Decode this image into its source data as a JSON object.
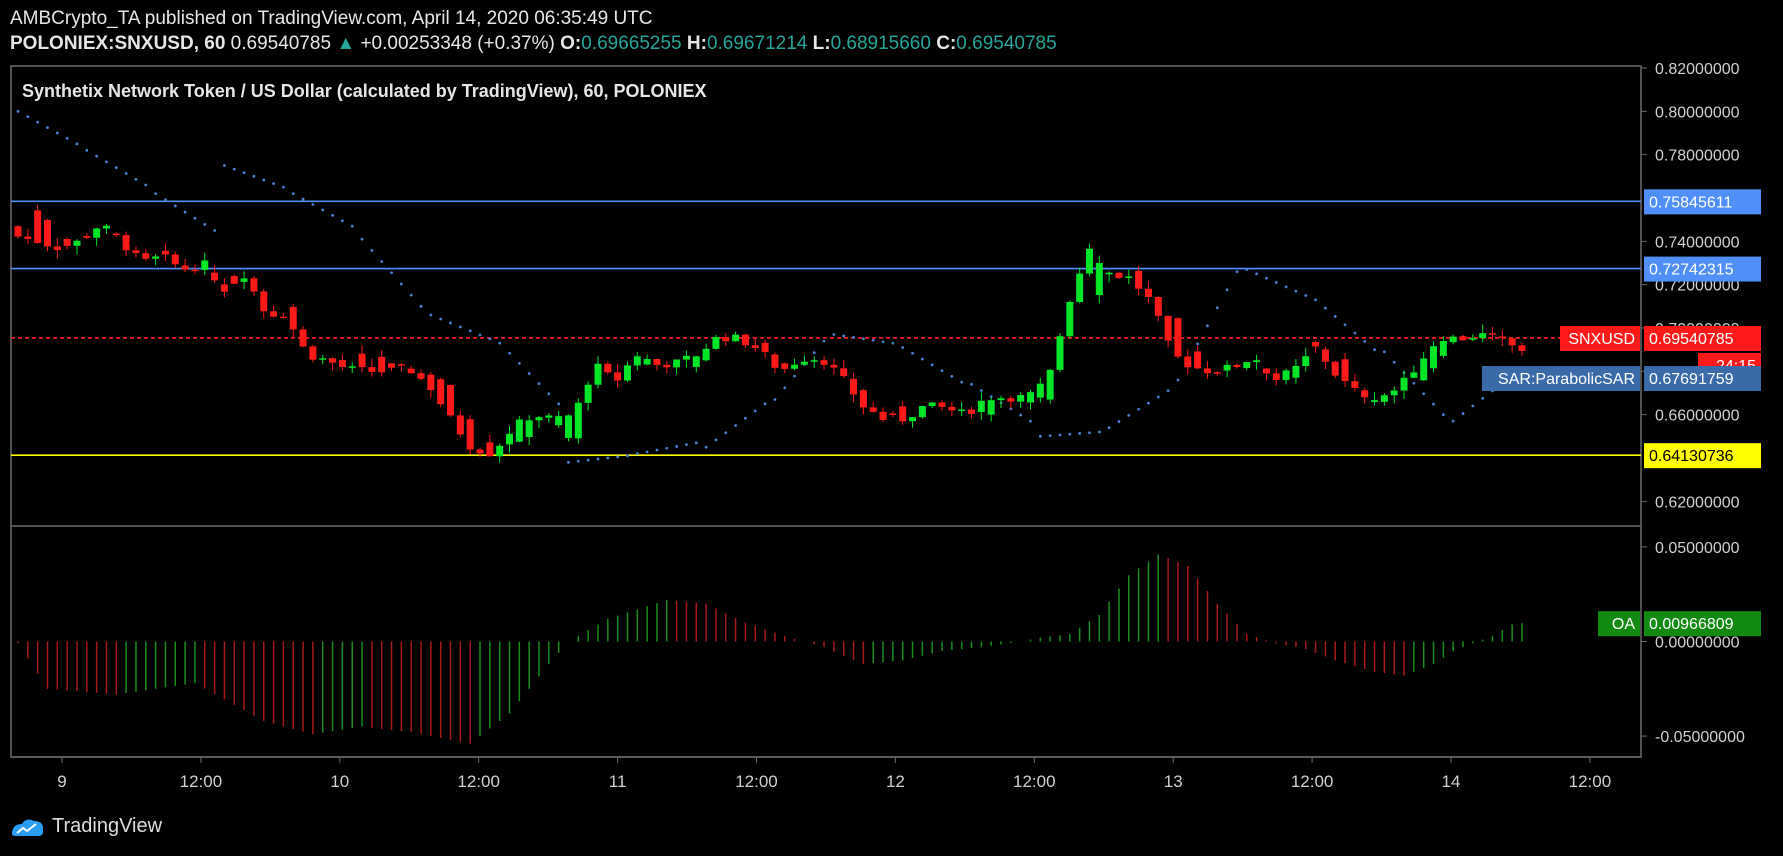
{
  "header": {
    "line1": "AMBCrypto_TA published on TradingView.com, April 14, 2020 06:35:49 UTC",
    "symbol": "POLONIEX:SNXUSD, 60",
    "last": "0.69540785",
    "change_arrow": "▲",
    "change": "+0.00253348 (+0.37%)",
    "o_label": "O:",
    "o_value": "0.69665255",
    "h_label": "H:",
    "h_value": "0.69671214",
    "l_label": "L:",
    "l_value": "0.68915660",
    "c_label": "C:",
    "c_value": "0.69540785"
  },
  "footer": {
    "brand": "TradingView",
    "logo_icon": "tradingview-logo-icon"
  },
  "colors": {
    "up": "#00e626",
    "down": "#ff1a1a",
    "sar": "#4a7fcf",
    "blue_line": "#4f8ff7",
    "yellow_line": "#ffff00",
    "osc_up": "#1a8c1a",
    "osc_down": "#a61a1a"
  },
  "chart_data": [
    {
      "type": "candlestick",
      "title": "Synthetix Network Token / US Dollar (calculated by TradingView), 60, POLONIEX",
      "ylim": [
        0.61,
        0.82
      ],
      "y_ticks": [
        "0.82000000",
        "0.80000000",
        "0.78000000",
        "0.74000000",
        "0.72000000",
        "0.70000000",
        "0.68000000",
        "0.66000000",
        "0.62000000"
      ],
      "y_tick_values": [
        0.82,
        0.8,
        0.78,
        0.74,
        0.72,
        0.7,
        0.68,
        0.66,
        0.62
      ],
      "x_ticks": [
        "9",
        "12:00",
        "10",
        "12:00",
        "11",
        "12:00",
        "12",
        "12:00",
        "13",
        "12:00",
        "14",
        "12:00"
      ],
      "anchors": [
        [
          0.747,
          0.742
        ],
        [
          0.755,
          0.74
        ],
        [
          0.743,
          0.737
        ],
        [
          0.742,
          0.74
        ],
        [
          0.744,
          0.748
        ],
        [
          0.744,
          0.74
        ],
        [
          0.735,
          0.73
        ],
        [
          0.735,
          0.733
        ],
        [
          0.73,
          0.727
        ],
        [
          0.73,
          0.73
        ],
        [
          0.722,
          0.718
        ],
        [
          0.723,
          0.725
        ],
        [
          0.718,
          0.707
        ],
        [
          0.708,
          0.706
        ],
        [
          0.71,
          0.688
        ],
        [
          0.698,
          0.685
        ],
        [
          0.68,
          0.681
        ],
        [
          0.69,
          0.68
        ],
        [
          0.684,
          0.68
        ],
        [
          0.683,
          0.681
        ],
        [
          0.678,
          0.673
        ],
        [
          0.674,
          0.658
        ],
        [
          0.659,
          0.645
        ],
        [
          0.648,
          0.642
        ],
        [
          0.646,
          0.654
        ],
        [
          0.652,
          0.66
        ],
        [
          0.66,
          0.658
        ],
        [
          0.646,
          0.66
        ],
        [
          0.655,
          0.683
        ],
        [
          0.672,
          0.675
        ],
        [
          0.68,
          0.688
        ],
        [
          0.688,
          0.683
        ],
        [
          0.683,
          0.684
        ],
        [
          0.684,
          0.688
        ],
        [
          0.688,
          0.696
        ],
        [
          0.694,
          0.695
        ],
        [
          0.696,
          0.69
        ],
        [
          0.685,
          0.68
        ],
        [
          0.68,
          0.686
        ],
        [
          0.685,
          0.686
        ],
        [
          0.684,
          0.677
        ],
        [
          0.672,
          0.664
        ],
        [
          0.663,
          0.658
        ],
        [
          0.662,
          0.658
        ],
        [
          0.66,
          0.664
        ],
        [
          0.664,
          0.663
        ],
        [
          0.664,
          0.66
        ],
        [
          0.659,
          0.668
        ],
        [
          0.668,
          0.668
        ],
        [
          0.665,
          0.668
        ],
        [
          0.668,
          0.676
        ],
        [
          0.676,
          0.712
        ],
        [
          0.705,
          0.738
        ],
        [
          0.726,
          0.725
        ],
        [
          0.728,
          0.723
        ],
        [
          0.72,
          0.712
        ],
        [
          0.712,
          0.688
        ],
        [
          0.69,
          0.682
        ],
        [
          0.682,
          0.68
        ],
        [
          0.68,
          0.682
        ],
        [
          0.683,
          0.687
        ],
        [
          0.682,
          0.676
        ],
        [
          0.677,
          0.681
        ],
        [
          0.692,
          0.691
        ],
        [
          0.692,
          0.678
        ],
        [
          0.675,
          0.67
        ],
        [
          0.664,
          0.668
        ],
        [
          0.666,
          0.672
        ],
        [
          0.673,
          0.684
        ],
        [
          0.686,
          0.696
        ],
        [
          0.697,
          0.695
        ],
        [
          0.695,
          0.697
        ],
        [
          0.698,
          0.694
        ],
        [
          0.695,
          0.69
        ]
      ],
      "sar": [
        [
          0.8,
          0.785
        ],
        [
          0.782,
          0.766
        ],
        [
          0.762,
          0.745
        ],
        [
          0.775,
          0.765
        ],
        [
          0.762,
          0.747
        ],
        [
          0.741,
          0.71
        ],
        [
          0.706,
          0.695
        ],
        [
          0.693,
          0.665
        ],
        [
          0.638,
          0.641
        ],
        [
          0.642,
          0.647
        ],
        [
          0.645,
          0.665
        ],
        [
          0.667,
          0.694
        ],
        [
          0.697,
          0.693
        ],
        [
          0.691,
          0.675
        ],
        [
          0.674,
          0.657
        ],
        [
          0.65,
          0.652
        ],
        [
          0.654,
          0.671
        ],
        [
          0.676,
          0.726
        ],
        [
          0.727,
          0.715
        ],
        [
          0.713,
          0.69
        ],
        [
          0.689,
          0.66
        ],
        [
          0.657,
          0.678
        ]
      ]
    },
    {
      "type": "histogram",
      "indicator": "OA",
      "ylim": [
        -0.06,
        0.06
      ],
      "y_ticks": [
        "0.05000000",
        "0.00000000",
        "-0.05000000"
      ],
      "y_tick_values": [
        0.05,
        0.0,
        -0.05
      ],
      "anchors": [
        [
          0,
          -0.001
        ],
        [
          3,
          -0.025
        ],
        [
          10,
          -0.028
        ],
        [
          18,
          -0.022
        ],
        [
          25,
          -0.042
        ],
        [
          30,
          -0.049
        ],
        [
          35,
          -0.045
        ],
        [
          40,
          -0.048
        ],
        [
          46,
          -0.054
        ],
        [
          50,
          -0.038
        ],
        [
          54,
          -0.012
        ],
        [
          56,
          0.0
        ],
        [
          60,
          0.012
        ],
        [
          66,
          0.022
        ],
        [
          70,
          0.02
        ],
        [
          74,
          0.01
        ],
        [
          78,
          0.003
        ],
        [
          82,
          -0.003
        ],
        [
          86,
          -0.012
        ],
        [
          90,
          -0.01
        ],
        [
          94,
          -0.005
        ],
        [
          98,
          -0.003
        ],
        [
          102,
          0.0
        ],
        [
          104,
          0.002
        ],
        [
          107,
          0.004
        ],
        [
          110,
          0.014
        ],
        [
          113,
          0.035
        ],
        [
          116,
          0.046
        ],
        [
          119,
          0.04
        ],
        [
          122,
          0.02
        ],
        [
          125,
          0.004
        ],
        [
          128,
          -0.001
        ],
        [
          131,
          -0.004
        ],
        [
          134,
          -0.01
        ],
        [
          138,
          -0.016
        ],
        [
          141,
          -0.018
        ],
        [
          144,
          -0.012
        ],
        [
          146,
          -0.005
        ],
        [
          150,
          0.003
        ],
        [
          152,
          0.009
        ],
        [
          153,
          0.00966809
        ]
      ]
    }
  ],
  "labels": {
    "level_1": "0.75845611",
    "level_2": "0.72742315",
    "level_3": "0.64130736",
    "snxusd_name": "SNXUSD",
    "snxusd_value": "0.69540785",
    "countdown": "24:15",
    "sar_name": "SAR:ParabolicSAR",
    "sar_value": "0.67691759",
    "oa_name": "OA",
    "oa_value": "0.00966809"
  }
}
